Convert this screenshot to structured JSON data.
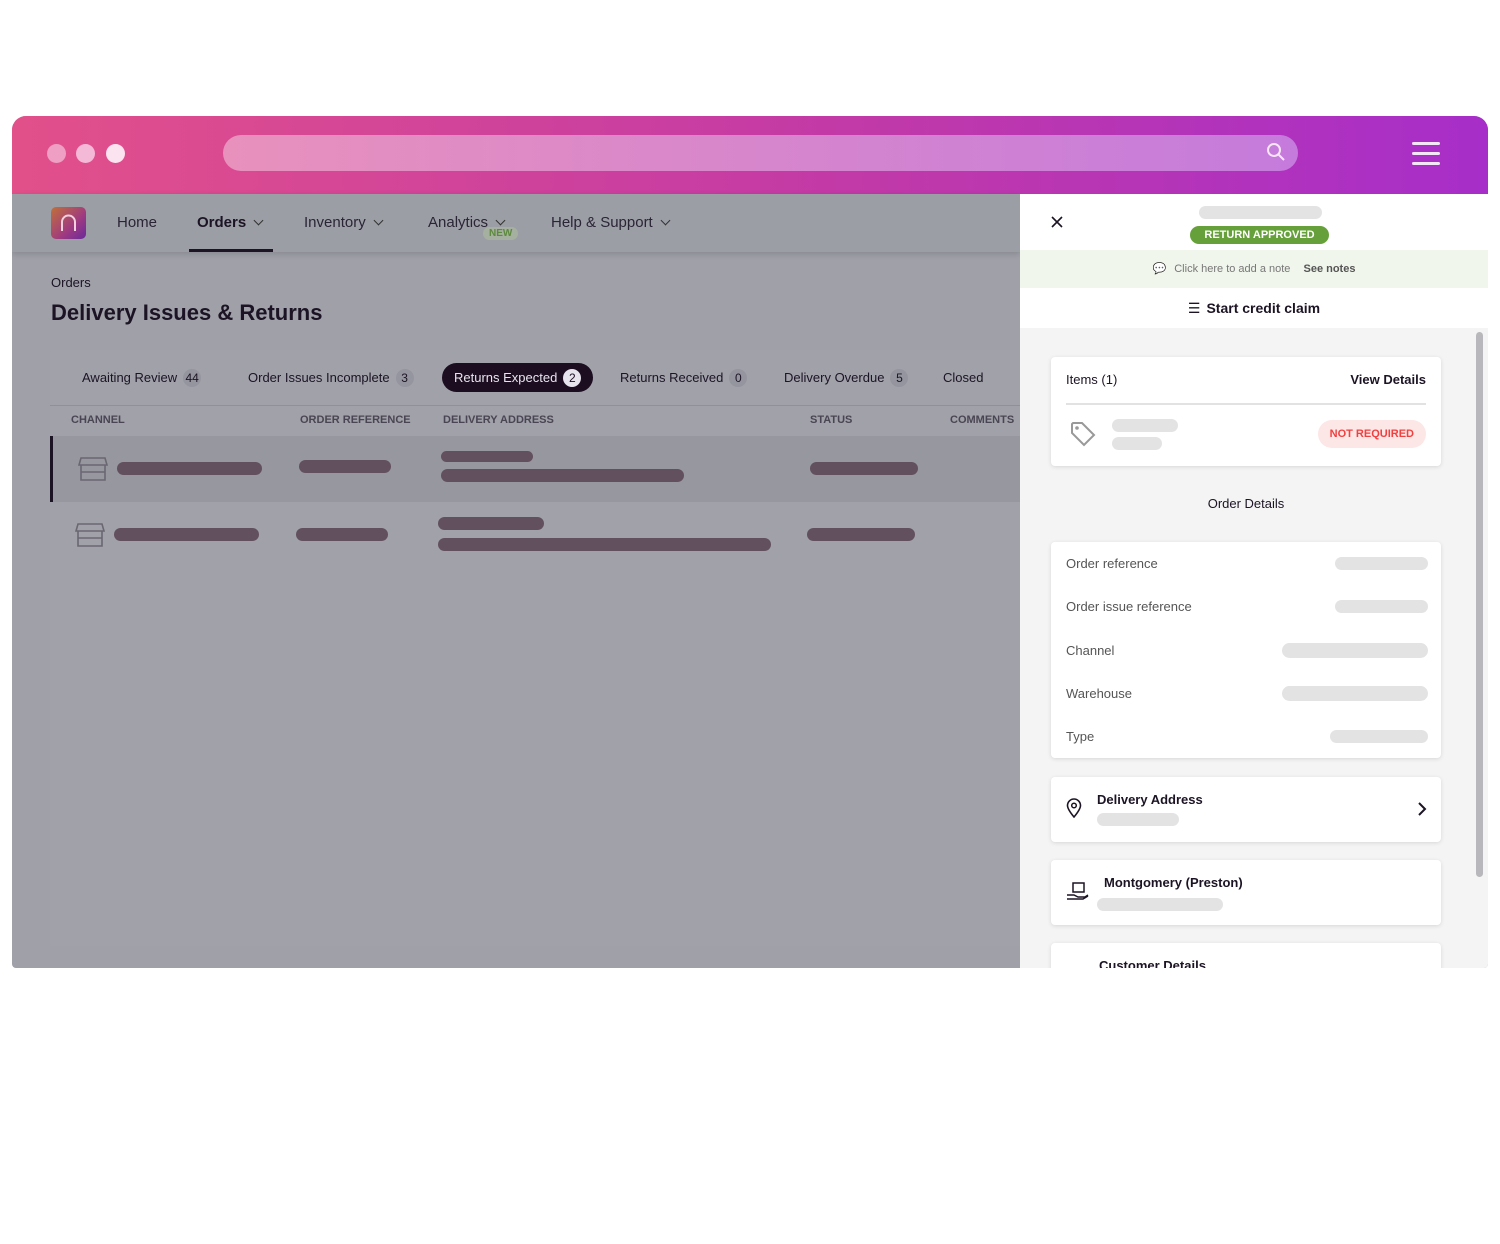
{
  "window": {
    "dots": [
      "#ee9fc3",
      "#f4b9d6",
      "#fbe3ef"
    ],
    "search_icon": "search-icon",
    "menu_icon": "hamburger-icon"
  },
  "nav": {
    "items": [
      {
        "label": "Home"
      },
      {
        "label": "Orders",
        "active": true
      },
      {
        "label": "Inventory"
      },
      {
        "label": "Analytics",
        "badge": "NEW"
      },
      {
        "label": "Help & Support"
      }
    ]
  },
  "page": {
    "breadcrumb": "Orders",
    "title": "Delivery Issues & Returns"
  },
  "tabs": [
    {
      "label": "Awaiting Review",
      "count": "44"
    },
    {
      "label": "Order Issues Incomplete",
      "count": "3"
    },
    {
      "label": "Returns Expected",
      "count": "2",
      "selected": true
    },
    {
      "label": "Returns Received",
      "count": "0"
    },
    {
      "label": "Delivery Overdue",
      "count": "5"
    },
    {
      "label": "Closed"
    }
  ],
  "table": {
    "columns": [
      "CHANNEL",
      "ORDER REFERENCE",
      "DELIVERY ADDRESS",
      "STATUS",
      "COMMENTS"
    ]
  },
  "drawer": {
    "status": "RETURN APPROVED",
    "note_prompt": "Click here to add a note",
    "see_notes": "See notes",
    "credit_claim": "Start credit claim",
    "items_title": "Items (1)",
    "view_details": "View Details",
    "item_status": "NOT REQUIRED",
    "order_details_title": "Order Details",
    "fields": [
      "Order reference",
      "Order issue reference",
      "Channel",
      "Warehouse",
      "Type"
    ],
    "delivery_address": "Delivery Address",
    "warehouse_name": "Montgomery (Preston)",
    "customer_details": "Customer Details"
  },
  "colors": {
    "accent_start": "#e2508a",
    "accent_end": "#a72ec9",
    "approved": "#65a03a",
    "not_required": "#f04040"
  }
}
